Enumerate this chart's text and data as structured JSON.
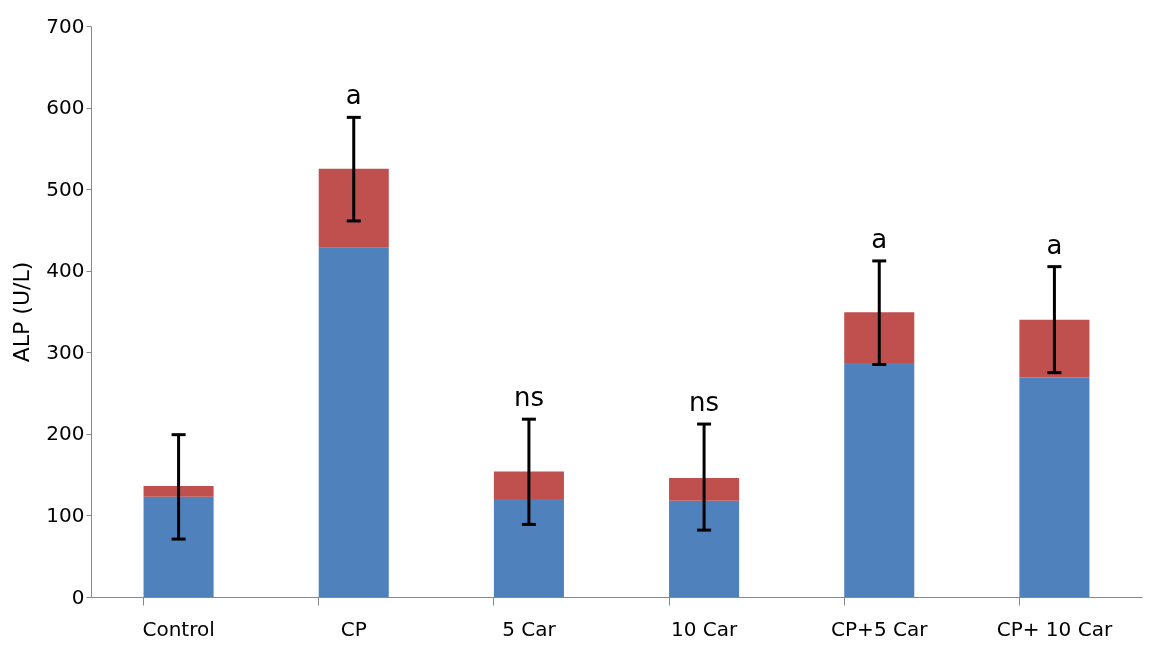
{
  "chart_data": {
    "type": "bar",
    "stacked": true,
    "ylabel": "ALP (U/L)",
    "categories": [
      "Control",
      "CP",
      "5 Car",
      "10 Car",
      "CP+5 Car",
      "CP+ 10 Car"
    ],
    "series": [
      {
        "color": "#4f81bd",
        "values": [
          123,
          428,
          120,
          118,
          287,
          269
        ]
      },
      {
        "color": "#c0504d",
        "values": [
          13,
          97,
          34,
          28,
          62,
          71
        ],
        "errors": [
          [
            71,
            199
          ],
          [
            461,
            588
          ],
          [
            89,
            218
          ],
          [
            82,
            212
          ],
          [
            285,
            412
          ],
          [
            275,
            405
          ]
        ]
      }
    ],
    "ylim": [
      0,
      700
    ],
    "yticks": [
      0,
      100,
      200,
      300,
      400,
      500,
      600,
      700
    ],
    "grid": false,
    "legend": false,
    "annotations": [
      {
        "text": "a",
        "x": "CP",
        "y": 588
      },
      {
        "text": "ns",
        "x": "5 Car",
        "y": 218
      },
      {
        "text": "ns",
        "x": "10 Car",
        "y": 212
      },
      {
        "text": "a",
        "x": "CP+5 Car",
        "y": 412
      },
      {
        "text": "a",
        "x": "CP+ 10 Car",
        "y": 405
      }
    ]
  }
}
